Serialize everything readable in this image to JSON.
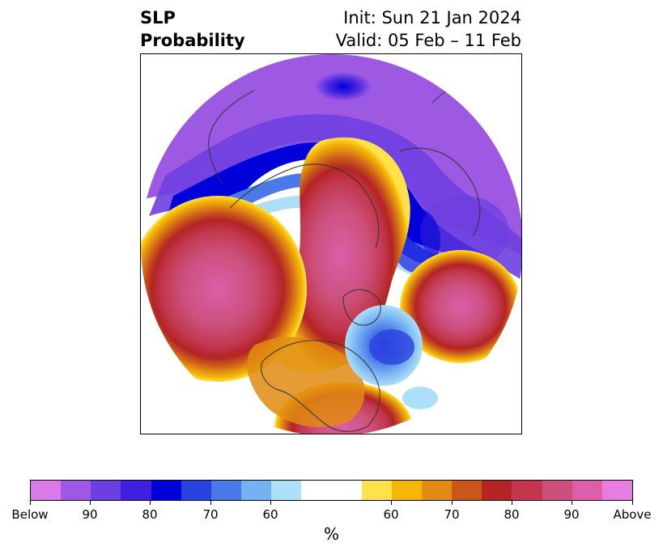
{
  "title": {
    "left_line1": "SLP",
    "left_line2": "Probability",
    "right_line1": "Init: Sun 21 Jan 2024",
    "right_line2": "Valid: 05 Feb – 11 Feb"
  },
  "map": {
    "projection": "north-polar-stereographic",
    "variable": "sea-level-pressure-probability",
    "regions": [
      {
        "name": "alaska-pacific",
        "category": "above",
        "level": 90
      },
      {
        "name": "arctic-greenland",
        "category": "above",
        "level": 90
      },
      {
        "name": "eurasia-north",
        "category": "below",
        "level": 90
      },
      {
        "name": "siberia",
        "category": "below",
        "level": 80
      },
      {
        "name": "north-atlantic-east",
        "category": "above",
        "level": 90
      },
      {
        "name": "north-atlantic-low",
        "category": "below",
        "level": 80
      },
      {
        "name": "eastern-us-gulf",
        "category": "above",
        "level": 90
      }
    ]
  },
  "colorbar": {
    "colors": [
      "#d97ae8",
      "#9e59e3",
      "#6e3fe0",
      "#3f1fe0",
      "#0000d8",
      "#2a42e0",
      "#4b79e8",
      "#76b2f2",
      "#addff9",
      "#ffffff",
      "#ffe14a",
      "#f3b703",
      "#e08b12",
      "#c9561c",
      "#b32424",
      "#c2374d",
      "#cc507c",
      "#db5fa9",
      "#e67de0"
    ],
    "ticks": [
      "Below",
      "90",
      "80",
      "70",
      "60",
      "60",
      "70",
      "80",
      "90",
      "Above"
    ],
    "label": "%"
  }
}
